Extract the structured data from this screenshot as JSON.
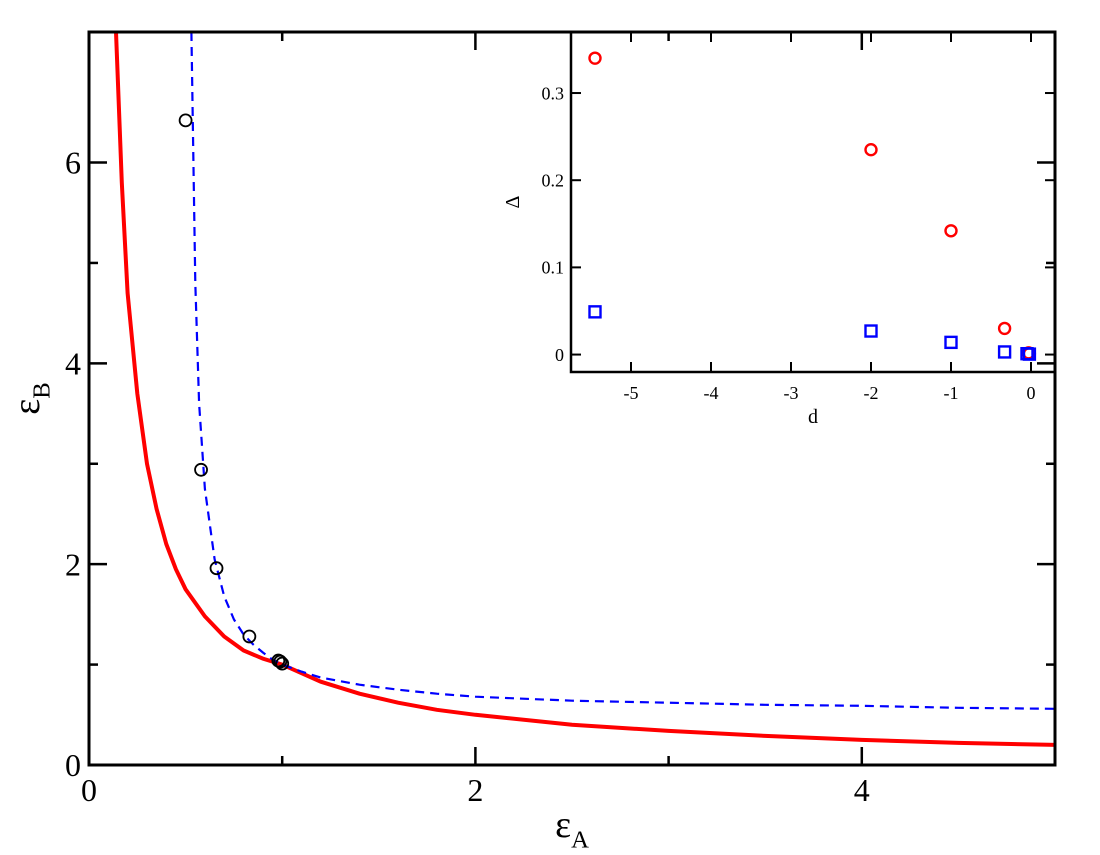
{
  "chart_data": [
    {
      "type": "line",
      "xlabel": "ε",
      "xlabel_sub": "A",
      "ylabel": "ε",
      "ylabel_sub": "B",
      "xlim": [
        0,
        5
      ],
      "ylim": [
        0,
        7.3
      ],
      "xticks": [
        0,
        2,
        4
      ],
      "yticks": [
        0,
        2,
        4,
        6
      ],
      "grid": false,
      "series": [
        {
          "style": "solid",
          "color": "#ff0000",
          "x": [
            0.14,
            0.17,
            0.2,
            0.25,
            0.3,
            0.35,
            0.4,
            0.45,
            0.5,
            0.6,
            0.7,
            0.8,
            0.9,
            1.0,
            1.2,
            1.4,
            1.6,
            1.8,
            2.0,
            2.5,
            3.0,
            3.5,
            4.0,
            4.5,
            5.0
          ],
          "y": [
            7.3,
            5.8,
            4.7,
            3.7,
            3.0,
            2.55,
            2.2,
            1.95,
            1.75,
            1.48,
            1.28,
            1.14,
            1.06,
            1.0,
            0.83,
            0.71,
            0.62,
            0.55,
            0.5,
            0.4,
            0.34,
            0.29,
            0.25,
            0.22,
            0.2
          ]
        },
        {
          "style": "dashed",
          "color": "#0000ff",
          "x": [
            0.53,
            0.55,
            0.57,
            0.6,
            0.65,
            0.7,
            0.75,
            0.8,
            0.85,
            0.9,
            0.95,
            1.0,
            1.1,
            1.2,
            1.4,
            1.6,
            1.8,
            2.0,
            2.5,
            3.0,
            3.5,
            4.0,
            4.5,
            5.0
          ],
          "y": [
            7.3,
            4.8,
            3.6,
            2.75,
            2.05,
            1.68,
            1.45,
            1.3,
            1.2,
            1.12,
            1.05,
            1.0,
            0.93,
            0.87,
            0.8,
            0.75,
            0.71,
            0.68,
            0.64,
            0.62,
            0.6,
            0.59,
            0.57,
            0.56
          ]
        },
        {
          "style": "markers",
          "marker": "circle",
          "color": "#000000",
          "x": [
            0.5,
            0.58,
            0.66,
            0.83,
            0.98,
            0.99,
            1.0
          ],
          "y": [
            6.42,
            2.94,
            1.96,
            1.28,
            1.04,
            1.03,
            1.01
          ]
        }
      ]
    },
    {
      "type": "scatter",
      "inset": true,
      "xlabel": "d",
      "ylabel": "Δ",
      "xlim": [
        -5.75,
        0.3
      ],
      "ylim": [
        -0.02,
        0.37
      ],
      "xticks": [
        -5,
        -4,
        -3,
        -2,
        -1,
        0
      ],
      "yticks": [
        0,
        0.1,
        0.2,
        0.3
      ],
      "ytick_labels": [
        "0",
        "0.1",
        "0.2",
        "0.3"
      ],
      "grid": false,
      "series": [
        {
          "marker": "circle",
          "color": "#ff0000",
          "x": [
            -5.45,
            -2.0,
            -1.0,
            -0.33,
            -0.03,
            -0.02
          ],
          "y": [
            0.34,
            0.235,
            0.142,
            0.03,
            0.002,
            0.001
          ]
        },
        {
          "marker": "square",
          "color": "#0000ff",
          "x": [
            -5.45,
            -2.0,
            -1.0,
            -0.33,
            -0.05,
            -0.02
          ],
          "y": [
            0.049,
            0.027,
            0.014,
            0.003,
            0.001,
            0.0005
          ]
        }
      ]
    }
  ]
}
